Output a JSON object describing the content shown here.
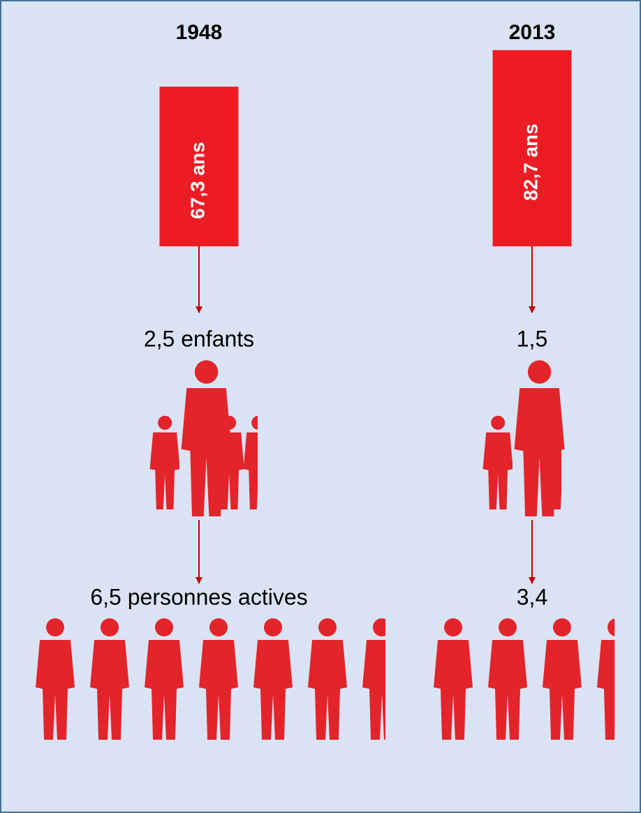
{
  "chart_data": {
    "type": "pictogram",
    "categories": [
      "1948",
      "2013"
    ],
    "life_expectancy": {
      "values": [
        67.3,
        82.7
      ],
      "value_labels": [
        "67,3 ans",
        "82,7 ans"
      ],
      "color": "#ed1c24"
    },
    "children": {
      "values": [
        2.5,
        1.5
      ],
      "value_labels": [
        "2,5 enfants",
        "1,5"
      ],
      "color": "#e3242b"
    },
    "workers": {
      "values": [
        6.5,
        3.4
      ],
      "value_labels": [
        "6,5 personnes actives",
        "3,4"
      ],
      "color": "#e3242b"
    }
  }
}
